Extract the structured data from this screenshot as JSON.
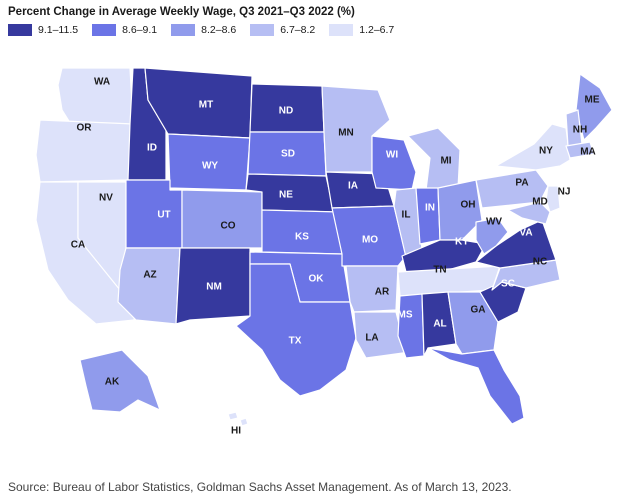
{
  "title": "Percent Change in Average Weekly Wage, Q3 2021–Q3 2022 (%)",
  "source": "Source: Bureau of Labor Statistics, Goldman Sachs Asset Management. As of March 13, 2023.",
  "legend": [
    {
      "label": "9.1–11.5",
      "color": "#36399e"
    },
    {
      "label": "8.6–9.1",
      "color": "#6b74e6"
    },
    {
      "label": "8.2–8.6",
      "color": "#909bec"
    },
    {
      "label": "6.7–8.2",
      "color": "#b6bef3"
    },
    {
      "label": "1.2–6.7",
      "color": "#dde2fa"
    }
  ],
  "states": [
    {
      "abbr": "WA",
      "bin": 4
    },
    {
      "abbr": "OR",
      "bin": 4
    },
    {
      "abbr": "CA",
      "bin": 4
    },
    {
      "abbr": "NV",
      "bin": 4
    },
    {
      "abbr": "ID",
      "bin": 0
    },
    {
      "abbr": "MT",
      "bin": 0
    },
    {
      "abbr": "WY",
      "bin": 1
    },
    {
      "abbr": "UT",
      "bin": 1
    },
    {
      "abbr": "AZ",
      "bin": 3
    },
    {
      "abbr": "CO",
      "bin": 2
    },
    {
      "abbr": "NM",
      "bin": 0
    },
    {
      "abbr": "ND",
      "bin": 0
    },
    {
      "abbr": "SD",
      "bin": 1
    },
    {
      "abbr": "NE",
      "bin": 0
    },
    {
      "abbr": "KS",
      "bin": 1
    },
    {
      "abbr": "OK",
      "bin": 1
    },
    {
      "abbr": "TX",
      "bin": 1
    },
    {
      "abbr": "MN",
      "bin": 3
    },
    {
      "abbr": "IA",
      "bin": 0
    },
    {
      "abbr": "MO",
      "bin": 1
    },
    {
      "abbr": "AR",
      "bin": 3
    },
    {
      "abbr": "LA",
      "bin": 3
    },
    {
      "abbr": "WI",
      "bin": 1
    },
    {
      "abbr": "IL",
      "bin": 3
    },
    {
      "abbr": "MI",
      "bin": 3
    },
    {
      "abbr": "IN",
      "bin": 1
    },
    {
      "abbr": "OH",
      "bin": 2
    },
    {
      "abbr": "KY",
      "bin": 0
    },
    {
      "abbr": "TN",
      "bin": 4
    },
    {
      "abbr": "MS",
      "bin": 1
    },
    {
      "abbr": "AL",
      "bin": 0
    },
    {
      "abbr": "GA",
      "bin": 2
    },
    {
      "abbr": "FL",
      "bin": 1
    },
    {
      "abbr": "SC",
      "bin": 0
    },
    {
      "abbr": "NC",
      "bin": 3
    },
    {
      "abbr": "VA",
      "bin": 0
    },
    {
      "abbr": "WV",
      "bin": 2
    },
    {
      "abbr": "PA",
      "bin": 3
    },
    {
      "abbr": "NY",
      "bin": 4
    },
    {
      "abbr": "NJ",
      "bin": 4
    },
    {
      "abbr": "MD",
      "bin": 3
    },
    {
      "abbr": "ME",
      "bin": 2
    },
    {
      "abbr": "NH",
      "bin": 3
    },
    {
      "abbr": "MA",
      "bin": 3
    },
    {
      "abbr": "AK",
      "bin": 2
    },
    {
      "abbr": "HI",
      "bin": 4
    }
  ]
}
